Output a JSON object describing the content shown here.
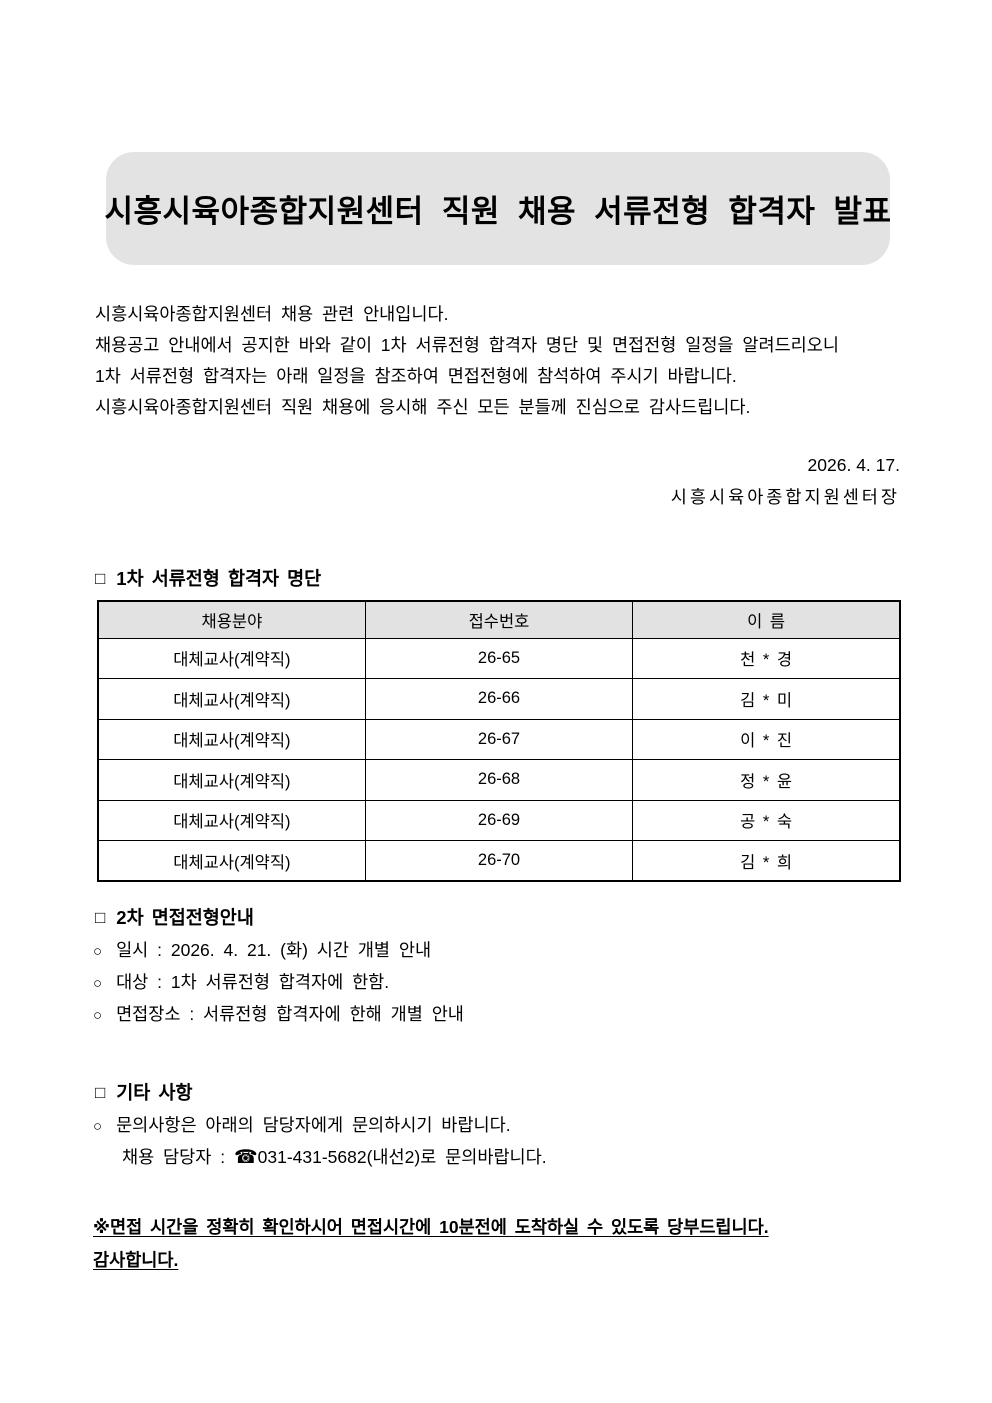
{
  "title_banner": {
    "text": "시흥시육아종합지원센터 직원 채용 서류전형 합격자 발표",
    "background": "#e3e3e3"
  },
  "intro": {
    "lines": [
      "시흥시육아종합지원센터 채용 관련 안내입니다.",
      "채용공고 안내에서 공지한 바와 같이 1차 서류전형 합격자 명단 및 면접전형 일정을 알려드리오니",
      "1차 서류전형 합격자는 아래 일정을 참조하여 면접전형에 참석하여 주시기 바랍니다.",
      "시흥시육아종합지원센터 직원 채용에 응시해 주신 모든 분들께 진심으로 감사드립니다."
    ]
  },
  "signoff": {
    "date": "2026. 4. 17.",
    "signer": "시흥시육아종합지원센터장"
  },
  "glyphs": {
    "square_bullet": "□",
    "circle_bullet": "○",
    "phone": "☎"
  },
  "section_pass_list": {
    "heading": "1차 서류전형 합격자 명단",
    "table": {
      "header_background": "#e2e2e2",
      "headers": [
        "채용분야",
        "접수번호",
        "이 름"
      ],
      "rows": [
        [
          "대체교사(계약직)",
          "26-65",
          "천 * 경"
        ],
        [
          "대체교사(계약직)",
          "26-66",
          "김 * 미"
        ],
        [
          "대체교사(계약직)",
          "26-67",
          "이 * 진"
        ],
        [
          "대체교사(계약직)",
          "26-68",
          "정 * 윤"
        ],
        [
          "대체교사(계약직)",
          "26-69",
          "공 * 숙"
        ],
        [
          "대체교사(계약직)",
          "26-70",
          "김 * 희"
        ]
      ]
    }
  },
  "section_interview": {
    "heading": "2차 면접전형안내",
    "items": [
      "일시 : 2026. 4. 21. (화) 시간 개별 안내",
      "대상 : 1차 서류전형 합격자에 한함.",
      "면접장소 : 서류전형 합격자에 한해 개별 안내"
    ]
  },
  "section_etc": {
    "heading": "기타 사항",
    "items": [
      "문의사항은 아래의 담당자에게 문의하시기 바랍니다."
    ],
    "contact": {
      "prefix": "채용 담당자 : ",
      "phone_icon": "☎",
      "text": "031-431-5682(내선2)로 문의바랍니다."
    }
  },
  "footer_note": {
    "lines": [
      "※면접 시간을 정확히 확인하시어 면접시간에 10분전에 도착하실 수 있도록 당부드립니다.",
      "감사합니다."
    ]
  }
}
